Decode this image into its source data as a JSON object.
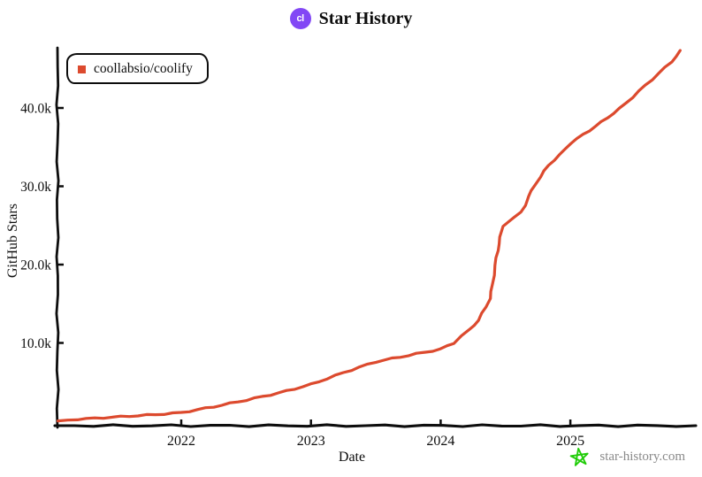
{
  "header": {
    "title": "Star History",
    "logo_text": "cl",
    "logo_color": "#8247f5"
  },
  "watermark": {
    "site": "star-history.com",
    "star_color": "#21cc09",
    "text_color": "#8a8a8a"
  },
  "chart_data": {
    "type": "line",
    "title": "Star History",
    "xlabel": "Date",
    "ylabel": "GitHub Stars",
    "grid": false,
    "legend_position": "top-left",
    "x_ticks": [
      "2022",
      "2023",
      "2024",
      "2025"
    ],
    "y_ticks": [
      {
        "value": 10000,
        "label": "10.0k"
      },
      {
        "value": 20000,
        "label": "20.0k"
      },
      {
        "value": 30000,
        "label": "30.0k"
      },
      {
        "value": 40000,
        "label": "40.0k"
      }
    ],
    "x_range": [
      2021.05,
      2025.93
    ],
    "y_range": [
      0,
      48000
    ],
    "axis_color": "#0d0d0d",
    "series": [
      {
        "name": "coollabsio/coolify",
        "color": "#dc4a2e",
        "points": [
          [
            2021.05,
            50
          ],
          [
            2021.2,
            250
          ],
          [
            2021.4,
            450
          ],
          [
            2021.6,
            650
          ],
          [
            2021.8,
            850
          ],
          [
            2022.0,
            1100
          ],
          [
            2022.25,
            1850
          ],
          [
            2022.5,
            2700
          ],
          [
            2022.75,
            3600
          ],
          [
            2023.0,
            4700
          ],
          [
            2023.25,
            6200
          ],
          [
            2023.5,
            7600
          ],
          [
            2023.75,
            8400
          ],
          [
            2024.0,
            9200
          ],
          [
            2024.1,
            10000
          ],
          [
            2024.16,
            10900
          ],
          [
            2024.22,
            11600
          ],
          [
            2024.29,
            12900
          ],
          [
            2024.35,
            14600
          ],
          [
            2024.38,
            15700
          ],
          [
            2024.4,
            17400
          ],
          [
            2024.42,
            19900
          ],
          [
            2024.44,
            21800
          ],
          [
            2024.46,
            23500
          ],
          [
            2024.48,
            24900
          ],
          [
            2024.52,
            25500
          ],
          [
            2024.57,
            26000
          ],
          [
            2024.62,
            26700
          ],
          [
            2024.65,
            27600
          ],
          [
            2024.68,
            28700
          ],
          [
            2024.72,
            30100
          ],
          [
            2024.77,
            31200
          ],
          [
            2024.83,
            32700
          ],
          [
            2024.92,
            34000
          ],
          [
            2025.0,
            35500
          ],
          [
            2025.1,
            36600
          ],
          [
            2025.24,
            38200
          ],
          [
            2025.38,
            39900
          ],
          [
            2025.48,
            41400
          ],
          [
            2025.58,
            42900
          ],
          [
            2025.68,
            44400
          ],
          [
            2025.78,
            45900
          ],
          [
            2025.85,
            47300
          ]
        ]
      }
    ]
  }
}
